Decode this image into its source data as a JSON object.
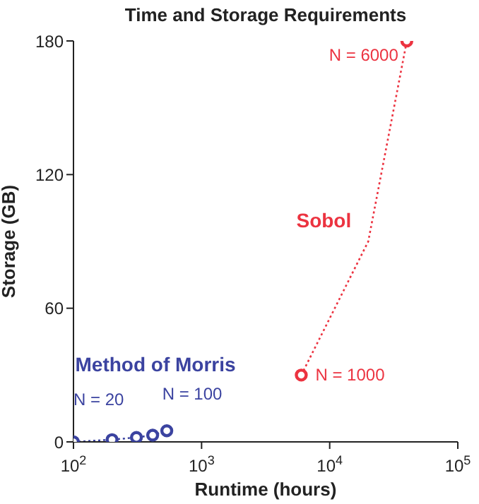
{
  "chart_data": {
    "type": "line",
    "title": "Time and Storage Requirements",
    "xlabel": "Runtime (hours)",
    "ylabel": "Storage (GB)",
    "log": "x",
    "xlim": [
      100,
      100000
    ],
    "xticks": [
      {
        "value": 100,
        "label": "10$^{2}$"
      },
      {
        "value": 1000,
        "label": "10$^{3}$"
      },
      {
        "value": 10000,
        "label": "10$^{4}$"
      },
      {
        "value": 100000,
        "label": "10$^{5}$"
      }
    ],
    "ylim": [
      0,
      180
    ],
    "yticks": [
      0,
      60,
      120,
      180
    ],
    "series": [
      {
        "name": "Method of Morris",
        "color": "#3b43a0",
        "x": [
          100,
          200,
          310,
          415,
          535
        ],
        "values": [
          0,
          1,
          2,
          3,
          5
        ],
        "marker": "circle",
        "line_style": "dotted"
      },
      {
        "name": "Sobol",
        "color": "#ec3340",
        "x": [
          6000,
          20000,
          40000
        ],
        "values": [
          30,
          90,
          180
        ],
        "marker": "none",
        "line_style": "dotted"
      },
      {
        "type": "scatter",
        "color": "#ec3340",
        "x": [
          6000,
          40000
        ],
        "values": [
          30,
          180
        ],
        "marker": "circle"
      }
    ],
    "annotations": [
      {
        "text": "N = 20",
        "x": 100,
        "y": 0
      },
      {
        "text": "N = 100",
        "x": 535,
        "y": 5
      },
      {
        "text": "N = 1000",
        "x": 6000,
        "y": 30
      },
      {
        "text": "N = 6000",
        "x": 40000,
        "y": 180
      }
    ]
  }
}
